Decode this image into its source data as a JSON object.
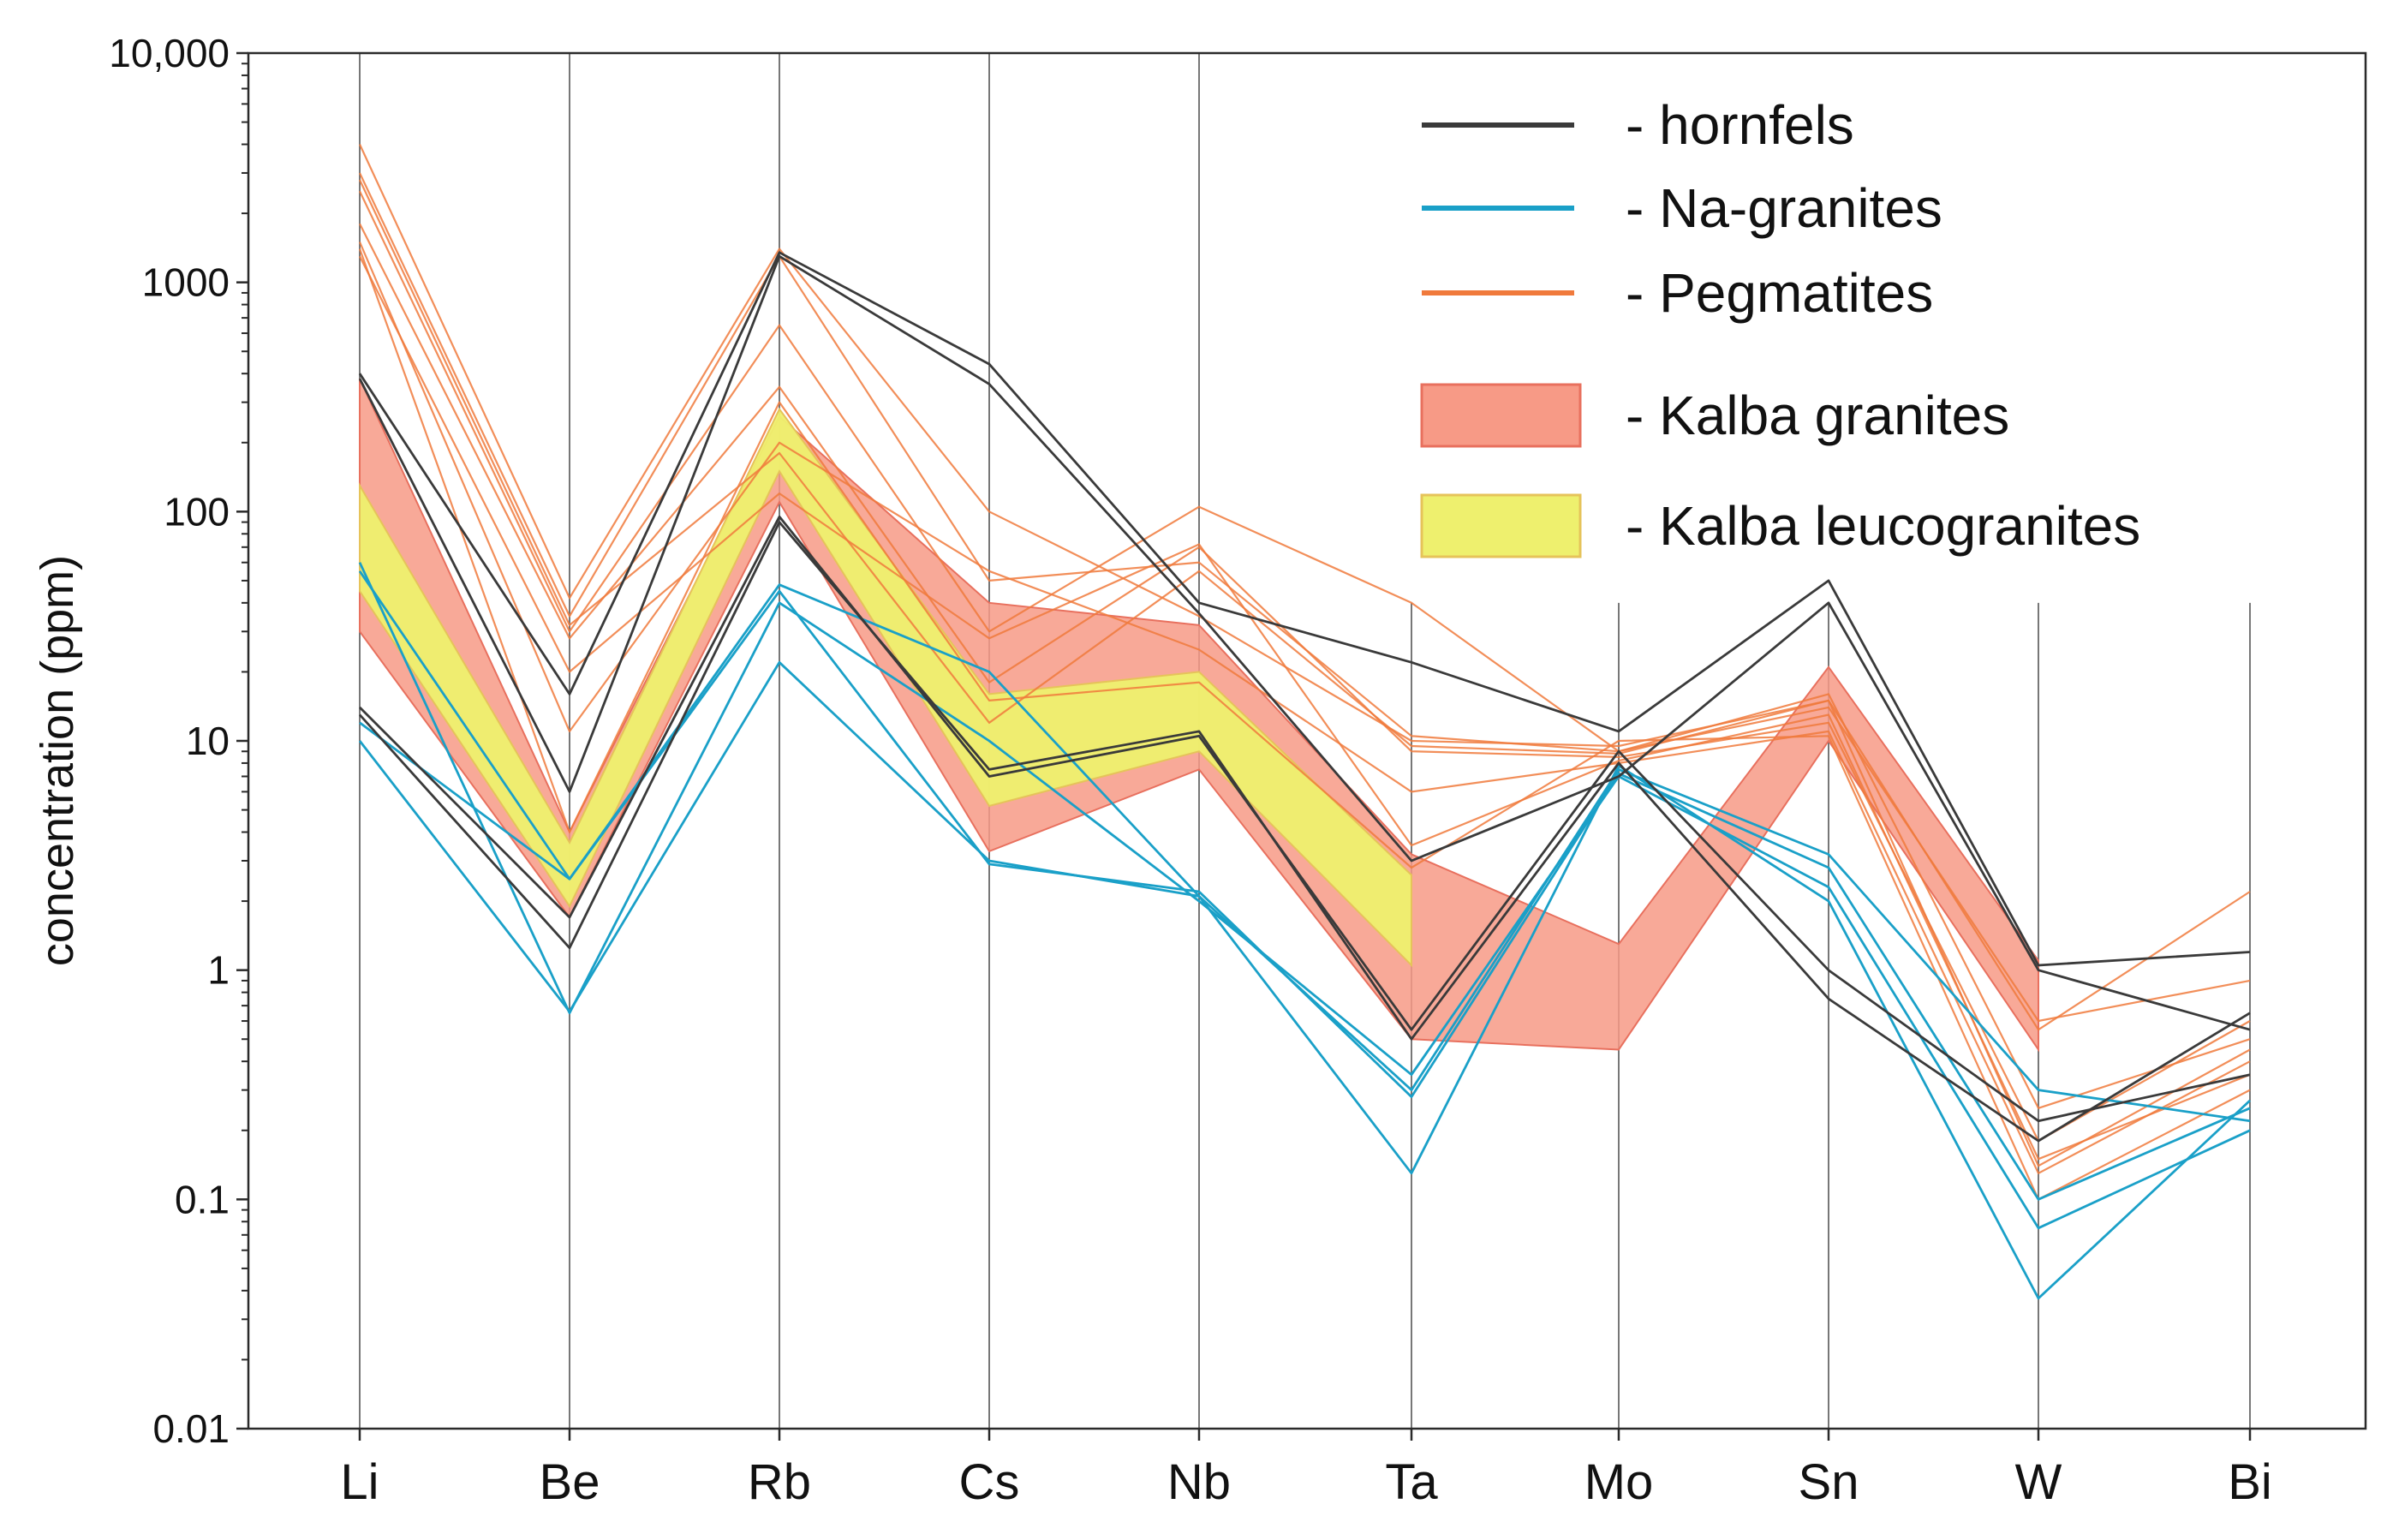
{
  "chart_data": {
    "type": "line",
    "title": "",
    "xlabel": "",
    "ylabel": "concentration (ppm)",
    "yscale": "log",
    "ylim": [
      0.01,
      10000
    ],
    "ytick_values": [
      0.01,
      0.1,
      1,
      10,
      100,
      1000,
      10000
    ],
    "ytick_labels": [
      "0.01",
      "0.1",
      "1",
      "10",
      "100",
      "1000",
      "10,000"
    ],
    "categories": [
      "Li",
      "Be",
      "Rb",
      "Cs",
      "Nb",
      "Ta",
      "Mo",
      "Sn",
      "W",
      "Bi"
    ],
    "legend": [
      {
        "label": "- hornfels",
        "kind": "line",
        "color": "#3a3a3a"
      },
      {
        "label": "- Na-granites",
        "kind": "line",
        "color": "#1aa0c8"
      },
      {
        "label": "- Pegmatites",
        "kind": "line",
        "color": "#f07a3c"
      },
      {
        "label": "- Kalba granites",
        "kind": "band",
        "color": "#f79a86"
      },
      {
        "label": "- Kalba leucogranites",
        "kind": "band",
        "color": "#eef06e"
      }
    ],
    "colors": {
      "hornfels": "#3a3a3a",
      "na_granites": "#1aa0c8",
      "pegmatites": "#f07a3c",
      "kalba_granites_fill": "#f79a86",
      "kalba_granites_edge": "#e8705e",
      "kalba_leucogranites_fill": "#eef06e",
      "kalba_leucogranites_edge": "#e6c35a"
    },
    "bands": [
      {
        "name": "Kalba granites",
        "upper": [
          380,
          4,
          260,
          40,
          32,
          3.2,
          1.3,
          21,
          1.1,
          null
        ],
        "lower": [
          30,
          1.7,
          110,
          3.3,
          7.5,
          0.5,
          0.45,
          10,
          0.45,
          null
        ]
      },
      {
        "name": "Kalba leucogranites",
        "upper": [
          130,
          3.6,
          280,
          16,
          20,
          2.6,
          null,
          null,
          null,
          null
        ],
        "lower": [
          45,
          1.9,
          150,
          5.2,
          9,
          1.05,
          null,
          null,
          null,
          null
        ]
      }
    ],
    "series": [
      {
        "name": "hornfels 1",
        "group": "hornfels",
        "values": [
          400,
          16,
          1350,
          440,
          40,
          22,
          11,
          50,
          1.05,
          1.2
        ]
      },
      {
        "name": "hornfels 2",
        "group": "hornfels",
        "values": [
          380,
          6,
          1300,
          360,
          36,
          3,
          7,
          40,
          1.0,
          0.55
        ]
      },
      {
        "name": "hornfels 3",
        "group": "hornfels",
        "values": [
          14,
          1.7,
          95,
          7,
          10.5,
          0.55,
          9,
          1,
          0.22,
          0.35
        ]
      },
      {
        "name": "hornfels 4",
        "group": "hornfels",
        "values": [
          13,
          1.25,
          90,
          7.5,
          11,
          0.5,
          8,
          0.75,
          0.18,
          0.65
        ]
      },
      {
        "name": "Na-granites 1",
        "group": "na_granites",
        "values": [
          55,
          2.5,
          48,
          20,
          2.1,
          0.3,
          7.5,
          3.2,
          0.3,
          0.22
        ]
      },
      {
        "name": "Na-granites 2",
        "group": "na_granites",
        "values": [
          60,
          0.65,
          40,
          10,
          2,
          0.35,
          7,
          2.3,
          0.075,
          0.2
        ]
      },
      {
        "name": "Na-granites 3",
        "group": "na_granites",
        "values": [
          10,
          0.66,
          22,
          3,
          2.1,
          0.13,
          7.8,
          2,
          0.037,
          0.27
        ]
      },
      {
        "name": "Na-granites 4",
        "group": "na_granites",
        "values": [
          12,
          2.5,
          45,
          2.9,
          2.2,
          0.28,
          7.2,
          2.8,
          0.1,
          0.25
        ]
      },
      {
        "name": "Pegmatites 1",
        "group": "pegmatites",
        "values": [
          4000,
          42,
          1400,
          100,
          35,
          10,
          9.5,
          15,
          0.55,
          2.2
        ]
      },
      {
        "name": "Pegmatites 2",
        "group": "pegmatites",
        "values": [
          3000,
          35,
          1300,
          50,
          60,
          10.5,
          9,
          14,
          0.6,
          0.9
        ]
      },
      {
        "name": "Pegmatites 3",
        "group": "pegmatites",
        "values": [
          2500,
          30,
          650,
          30,
          105,
          40,
          9,
          16,
          0.25,
          0.5
        ]
      },
      {
        "name": "Pegmatites 4",
        "group": "pegmatites",
        "values": [
          1800,
          28,
          350,
          18,
          70,
          9,
          8.5,
          12,
          0.18,
          0.6
        ]
      },
      {
        "name": "Pegmatites 5",
        "group": "pegmatites",
        "values": [
          1500,
          11,
          200,
          55,
          25,
          6,
          8,
          11,
          0.13,
          0.4
        ]
      },
      {
        "name": "Pegmatites 6",
        "group": "pegmatites",
        "values": [
          1300,
          20,
          120,
          28,
          72,
          3.5,
          8.2,
          13,
          0.15,
          0.35
        ]
      },
      {
        "name": "Pegmatites 7",
        "group": "pegmatites",
        "values": [
          1400,
          4,
          300,
          15,
          18,
          2.8,
          10,
          10.5,
          0.1,
          0.3
        ]
      },
      {
        "name": "Pegmatites 8",
        "group": "pegmatites",
        "values": [
          2800,
          32,
          180,
          12,
          55,
          9.5,
          8.8,
          15,
          0.14,
          0.45
        ]
      }
    ]
  }
}
